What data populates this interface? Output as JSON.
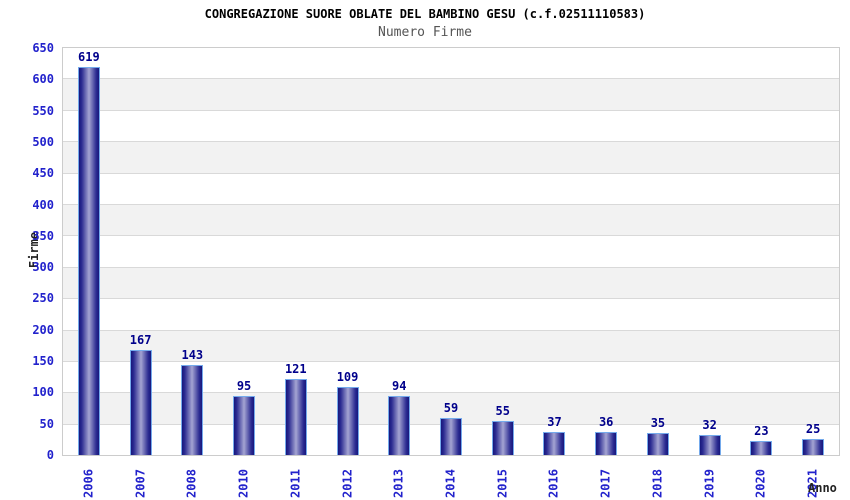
{
  "chart_data": {
    "type": "bar",
    "title": "CONGREGAZIONE SUORE OBLATE DEL BAMBINO GESU (c.f.02511110583)",
    "subtitle": "Numero Firme",
    "xlabel": "Anno",
    "ylabel": "Firme",
    "categories": [
      "2006",
      "2007",
      "2008",
      "2010",
      "2011",
      "2012",
      "2013",
      "2014",
      "2015",
      "2016",
      "2017",
      "2018",
      "2019",
      "2020",
      "2021"
    ],
    "values": [
      619,
      167,
      143,
      95,
      121,
      109,
      94,
      59,
      55,
      37,
      36,
      35,
      32,
      23,
      25
    ],
    "ylim": [
      0,
      650
    ],
    "yticks": [
      0,
      50,
      100,
      150,
      200,
      250,
      300,
      350,
      400,
      450,
      500,
      550,
      600,
      650
    ],
    "grid": "horizontal-alternating-bands",
    "legend": "none",
    "colors": {
      "tick_label": "#2222cc",
      "value_label": "#00008b",
      "bar_edge": "#17177c",
      "bar_shade": "#2c2c92",
      "bar_mid": "#a4a4d2",
      "bar_border": "#74aaec",
      "band_alt": "#f2f2f2",
      "gridline": "#d9d9d9",
      "plot_border": "#cccccc",
      "title": "#000000",
      "subtitle": "#555555",
      "axis_title": "#222222",
      "background": "#ffffff"
    }
  }
}
